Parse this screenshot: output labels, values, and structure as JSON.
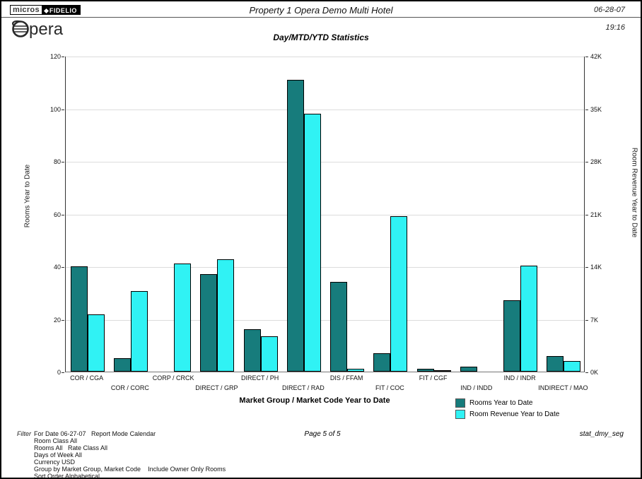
{
  "header": {
    "logo": {
      "micros": "micros",
      "fidelio": "FIDELIO",
      "opera_text": "pera"
    },
    "title": "Property 1 Opera Demo Multi Hotel",
    "date": "06-28-07",
    "time": "19:16"
  },
  "chart_data": {
    "type": "bar",
    "title": "Day/MTD/YTD Statistics",
    "xlabel": "Market Group / Market Code Year to Date",
    "grid": true,
    "legend_position": "bottom-right",
    "categories": [
      "COR / CGA",
      "COR / CORC",
      "CORP / CRCK",
      "DIRECT / GRP",
      "DIRECT / PH",
      "DIRECT / RAD",
      "DIS / FFAM",
      "FIT / COC",
      "FIT / CGF",
      "IND / INDD",
      "IND / INDR",
      "INDIRECT / MAO"
    ],
    "left_axis": {
      "label": "Rooms Year to Date",
      "tick_values": [
        0,
        20,
        40,
        60,
        80,
        100,
        120
      ],
      "max": 120
    },
    "right_axis": {
      "label": "Room Revenue Year to Date",
      "tick_labels": [
        "0K",
        "7K",
        "14K",
        "21K",
        "28K",
        "35K",
        "42K"
      ],
      "max": 42000
    },
    "series": [
      {
        "name": "Rooms Year to Date",
        "axis": "left",
        "color": "#177c7c",
        "values": [
          40,
          5,
          0,
          37,
          16,
          111,
          34,
          7,
          1,
          2,
          27,
          6
        ]
      },
      {
        "name": "Room Revenue Year to Date",
        "axis": "right",
        "color": "#30f2f4",
        "values": [
          7600,
          10700,
          14400,
          14900,
          4700,
          34300,
          350,
          20700,
          100,
          0,
          14100,
          1400
        ]
      }
    ]
  },
  "footer": {
    "filter_label": "Filter",
    "filter_lines": [
      "For Date 06-27-07   Report Mode Calendar",
      "Room Class All",
      "Rooms All   Rate Class All",
      "Days of Week All",
      "Currency USD",
      "Group by Market Group, Market Code    Include Owner Only Rooms",
      "Sort Order Alphabetical"
    ],
    "page": "Page 5 of 5",
    "report_id": "stat_dmy_seg"
  }
}
